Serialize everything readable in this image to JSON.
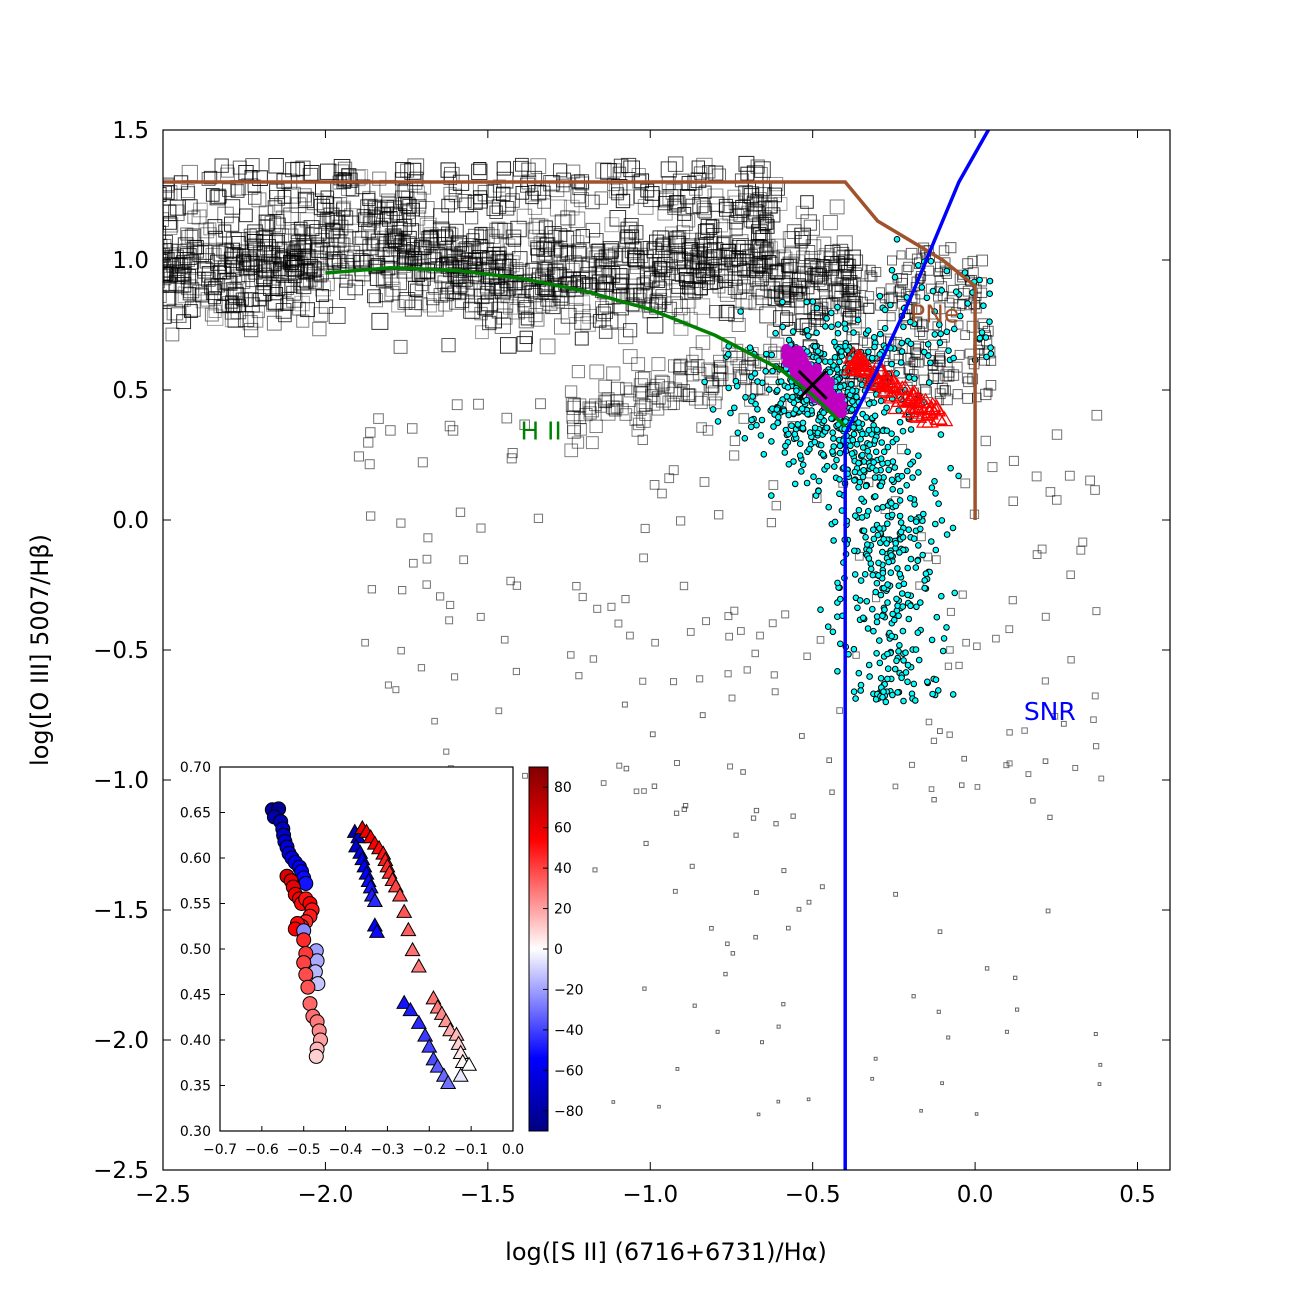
{
  "chart_data": [
    {
      "type": "scatter",
      "xlabel": "log([S II] (6716+6731)/Hα)",
      "ylabel": "log([O III] 5007/Hβ)",
      "xlim": [
        -2.5,
        0.6
      ],
      "ylim": [
        -2.5,
        1.5
      ],
      "x_ticks": [
        "−2.5",
        "−2.0",
        "−1.5",
        "−1.0",
        "−0.5",
        "0.0",
        "0.5"
      ],
      "x_tick_values": [
        -2.5,
        -2.0,
        -1.5,
        -1.0,
        -0.5,
        0.0,
        0.5
      ],
      "y_ticks": [
        "1.5",
        "1.0",
        "0.5",
        "0.0",
        "−0.5",
        "−1.0",
        "−1.5",
        "−2.0",
        "−2.5"
      ],
      "y_tick_values": [
        1.5,
        1.0,
        0.5,
        0.0,
        -0.5,
        -1.0,
        -1.5,
        -2.0,
        -2.5
      ],
      "region_labels": [
        {
          "text": "PNe",
          "x": -0.2,
          "y": 0.76,
          "color": "#a0522d"
        },
        {
          "text": "H II",
          "x": -1.4,
          "y": 0.31,
          "color": "#008000"
        },
        {
          "text": "SNR",
          "x": 0.15,
          "y": -0.77,
          "color": "#0000ff"
        }
      ],
      "boundaries": {
        "pne": {
          "color": "#a0522d",
          "points": [
            [
              -2.5,
              1.3
            ],
            [
              -0.4,
              1.3
            ],
            [
              -0.3,
              1.15
            ],
            [
              -0.1,
              1.0
            ],
            [
              0.0,
              0.9
            ],
            [
              0.0,
              0.0
            ]
          ]
        },
        "hii": {
          "color": "#008000",
          "points": [
            [
              -2.0,
              0.95
            ],
            [
              -1.8,
              0.97
            ],
            [
              -1.6,
              0.96
            ],
            [
              -1.4,
              0.93
            ],
            [
              -1.2,
              0.88
            ],
            [
              -1.0,
              0.81
            ],
            [
              -0.8,
              0.71
            ],
            [
              -0.6,
              0.58
            ],
            [
              -0.5,
              0.48
            ],
            [
              -0.4,
              0.36
            ]
          ]
        },
        "snr": {
          "color": "#0000ff",
          "points": [
            [
              -0.4,
              -2.5
            ],
            [
              -0.4,
              0.33
            ],
            [
              -0.3,
              0.58
            ],
            [
              -0.2,
              0.85
            ],
            [
              -0.1,
              1.15
            ],
            [
              -0.05,
              1.3
            ],
            [
              0.05,
              1.52
            ]
          ]
        }
      },
      "series": [
        {
          "marker": "square-open",
          "color": "#000000",
          "count": 2000
        },
        {
          "marker": "circle",
          "color": "#00ffff",
          "count": 800
        },
        {
          "marker": "circle",
          "color": "#c000c0",
          "x_range": [
            -0.6,
            -0.42
          ],
          "y_range": [
            0.4,
            0.65
          ]
        },
        {
          "marker": "triangle-open",
          "color": "#ff0000",
          "x_range": [
            -0.4,
            -0.1
          ],
          "y_range": [
            0.35,
            0.64
          ]
        }
      ],
      "centroid": {
        "marker": "x",
        "x": -0.5,
        "y": 0.52
      }
    },
    {
      "type": "scatter",
      "xlim": [
        -0.7,
        0.0
      ],
      "ylim": [
        0.3,
        0.7
      ],
      "x_ticks": [
        "−0.7",
        "−0.6",
        "−0.5",
        "−0.4",
        "−0.3",
        "−0.2",
        "−0.1",
        "0.0"
      ],
      "x_tick_values": [
        -0.7,
        -0.6,
        -0.5,
        -0.4,
        -0.3,
        -0.2,
        -0.1,
        0.0
      ],
      "y_ticks": [
        "0.70",
        "0.65",
        "0.60",
        "0.55",
        "0.50",
        "0.45",
        "0.40",
        "0.35",
        "0.30"
      ],
      "y_tick_values": [
        0.7,
        0.65,
        0.6,
        0.55,
        0.5,
        0.45,
        0.4,
        0.35,
        0.3
      ],
      "circles": [
        [
          -0.575,
          0.653,
          -80
        ],
        [
          -0.56,
          0.654,
          -85
        ],
        [
          -0.57,
          0.645,
          -78
        ],
        [
          -0.555,
          0.64,
          -75
        ],
        [
          -0.55,
          0.632,
          -72
        ],
        [
          -0.548,
          0.625,
          -70
        ],
        [
          -0.545,
          0.618,
          -68
        ],
        [
          -0.54,
          0.612,
          -66
        ],
        [
          -0.535,
          0.605,
          -64
        ],
        [
          -0.528,
          0.6,
          -62
        ],
        [
          -0.52,
          0.595,
          -60
        ],
        [
          -0.51,
          0.59,
          -58
        ],
        [
          -0.505,
          0.585,
          -55
        ],
        [
          -0.5,
          0.578,
          -52
        ],
        [
          -0.495,
          0.572,
          -50
        ],
        [
          -0.54,
          0.58,
          65
        ],
        [
          -0.53,
          0.575,
          62
        ],
        [
          -0.525,
          0.568,
          60
        ],
        [
          -0.52,
          0.56,
          58
        ],
        [
          -0.51,
          0.555,
          55
        ],
        [
          -0.505,
          0.55,
          52
        ],
        [
          -0.495,
          0.555,
          50
        ],
        [
          -0.485,
          0.55,
          55
        ],
        [
          -0.48,
          0.543,
          50
        ],
        [
          -0.485,
          0.536,
          48
        ],
        [
          -0.495,
          0.53,
          45
        ],
        [
          -0.505,
          0.525,
          50
        ],
        [
          -0.515,
          0.528,
          52
        ],
        [
          -0.52,
          0.522,
          55
        ],
        [
          -0.5,
          0.52,
          -25
        ],
        [
          -0.47,
          0.498,
          -20
        ],
        [
          -0.468,
          0.487,
          -18
        ],
        [
          -0.472,
          0.475,
          -15
        ],
        [
          -0.466,
          0.462,
          -12
        ],
        [
          -0.5,
          0.51,
          45
        ],
        [
          -0.495,
          0.495,
          42
        ],
        [
          -0.5,
          0.485,
          40
        ],
        [
          -0.495,
          0.472,
          38
        ],
        [
          -0.49,
          0.458,
          36
        ],
        [
          -0.485,
          0.44,
          32
        ],
        [
          -0.478,
          0.426,
          30
        ],
        [
          -0.468,
          0.42,
          28
        ],
        [
          -0.463,
          0.41,
          25
        ],
        [
          -0.46,
          0.4,
          20
        ],
        [
          -0.468,
          0.39,
          15
        ],
        [
          -0.47,
          0.382,
          10
        ]
      ],
      "triangles": [
        [
          -0.378,
          0.628,
          -75
        ],
        [
          -0.37,
          0.622,
          -70
        ],
        [
          -0.375,
          0.612,
          -68
        ],
        [
          -0.365,
          0.605,
          -65
        ],
        [
          -0.36,
          0.598,
          -60
        ],
        [
          -0.355,
          0.59,
          -58
        ],
        [
          -0.35,
          0.582,
          -55
        ],
        [
          -0.345,
          0.574,
          -52
        ],
        [
          -0.34,
          0.567,
          -50
        ],
        [
          -0.337,
          0.558,
          -48
        ],
        [
          -0.33,
          0.552,
          -45
        ],
        [
          -0.36,
          0.632,
          60
        ],
        [
          -0.35,
          0.628,
          58
        ],
        [
          -0.34,
          0.622,
          56
        ],
        [
          -0.33,
          0.615,
          55
        ],
        [
          -0.32,
          0.61,
          52
        ],
        [
          -0.31,
          0.604,
          50
        ],
        [
          -0.305,
          0.597,
          48
        ],
        [
          -0.3,
          0.59,
          46
        ],
        [
          -0.295,
          0.583,
          44
        ],
        [
          -0.288,
          0.575,
          42
        ],
        [
          -0.28,
          0.568,
          40
        ],
        [
          -0.27,
          0.558,
          38
        ],
        [
          -0.26,
          0.54,
          36
        ],
        [
          -0.25,
          0.52,
          34
        ],
        [
          -0.24,
          0.498,
          30
        ],
        [
          -0.225,
          0.48,
          28
        ],
        [
          -0.33,
          0.525,
          -55
        ],
        [
          -0.325,
          0.518,
          -52
        ],
        [
          -0.26,
          0.44,
          -50
        ],
        [
          -0.245,
          0.432,
          -48
        ],
        [
          -0.225,
          0.418,
          -45
        ],
        [
          -0.21,
          0.404,
          -42
        ],
        [
          -0.2,
          0.392,
          -40
        ],
        [
          -0.19,
          0.378,
          -38
        ],
        [
          -0.18,
          0.37,
          -35
        ],
        [
          -0.165,
          0.36,
          -32
        ],
        [
          -0.155,
          0.352,
          -30
        ],
        [
          -0.19,
          0.445,
          30
        ],
        [
          -0.18,
          0.435,
          28
        ],
        [
          -0.17,
          0.428,
          25
        ],
        [
          -0.16,
          0.42,
          22
        ],
        [
          -0.15,
          0.41,
          18
        ],
        [
          -0.135,
          0.405,
          15
        ],
        [
          -0.13,
          0.395,
          10
        ],
        [
          -0.125,
          0.385,
          5
        ],
        [
          -0.12,
          0.375,
          2
        ],
        [
          -0.105,
          0.372,
          0
        ],
        [
          -0.125,
          0.36,
          -5
        ]
      ],
      "colorbar": {
        "range": [
          -90,
          90
        ],
        "ticks": [
          "80",
          "60",
          "40",
          "20",
          "0",
          "−20",
          "−40",
          "−60",
          "−80"
        ],
        "tick_values": [
          80,
          60,
          40,
          20,
          0,
          -20,
          -40,
          -60,
          -80
        ]
      }
    }
  ]
}
